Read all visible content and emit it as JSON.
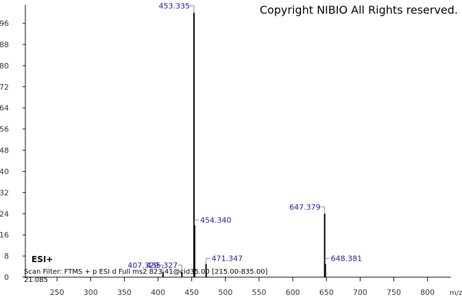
{
  "chart_data": {
    "type": "spectrum",
    "watermark": "Copyright NIBIO All Rights reserved.",
    "ion_mode": "ESI+",
    "scan_filter": "Scan Filter: FTMS + p ESI d Full ms2 823.41@cid35.00 [215.00-835.00]",
    "retention_time": "21.085",
    "xlabel": "m/z",
    "x": [
      407.329,
      435.327,
      453.335,
      454.34,
      471.347,
      647.379,
      648.381
    ],
    "peak_labels": [
      "407.329",
      "435.327",
      "453.335",
      "454.340",
      "471.347",
      "647.379",
      "648.381"
    ],
    "values": [
      2,
      2,
      100,
      19.5,
      5,
      24,
      5
    ],
    "color": "#000000",
    "label_color": "#1a1a9c",
    "xlim": [
      203,
      835
    ],
    "ylim": [
      0,
      103
    ],
    "xticks": [
      250,
      300,
      350,
      400,
      450,
      500,
      550,
      600,
      650,
      700,
      750,
      800
    ],
    "yticks": [
      0,
      8,
      16,
      24,
      32,
      40,
      48,
      56,
      64,
      72,
      80,
      88,
      96
    ]
  }
}
